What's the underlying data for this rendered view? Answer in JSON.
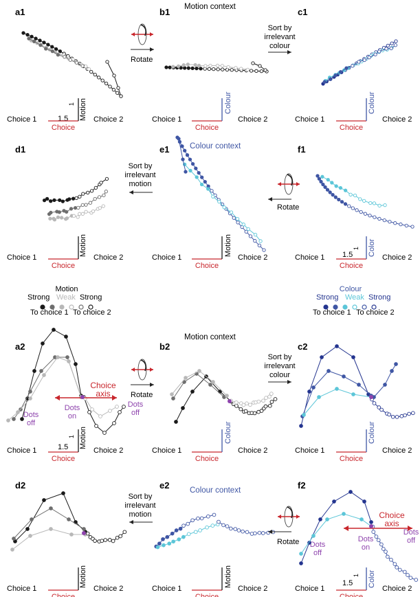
{
  "panels": {
    "a1": "a1",
    "b1": "b1",
    "c1": "c1",
    "d1": "d1",
    "e1": "e1",
    "f1": "f1",
    "a2": "a2",
    "b2": "b2",
    "c2": "c2",
    "d2": "d2",
    "e2": "e2",
    "f2": "f2"
  },
  "contexts": {
    "motion": "Motion context",
    "colour": "Colour context"
  },
  "axes": {
    "choice1": "Choice 1",
    "choice2": "Choice 2",
    "choice": "Choice",
    "motion": "Motion",
    "colour": "Colour",
    "color": "Color",
    "scale_value": "1.5",
    "scale_unit": "1"
  },
  "operations": {
    "rotate": "Rotate",
    "sort_colour": [
      "Sort by",
      "irrelevant",
      "colour"
    ],
    "sort_motion": [
      "Sort by",
      "irrelevant",
      "motion"
    ]
  },
  "annotations": {
    "choice_axis": [
      "Choice",
      "axis"
    ],
    "dots_on": [
      "Dots",
      "on"
    ],
    "dots_off": [
      "Dots",
      "off"
    ]
  },
  "legend_motion": {
    "title": "Motion",
    "strong": "Strong",
    "weak": "Weak",
    "to_choice1": "To choice 1",
    "to_choice2": "To choice 2"
  },
  "legend_colour": {
    "title": "Colour",
    "strong": "Strong",
    "weak": "Weak",
    "to_choice1": "To choice 1",
    "to_choice2": "To choice 2"
  },
  "colors": {
    "black": "#1a1a1a",
    "dark_grey": "#6e6e6e",
    "light_grey": "#b8b8b8",
    "choice_red": "#c8262c",
    "colour_blue": "#3f56a4",
    "dark_blue": "#24358f",
    "cyan": "#5cc6d8",
    "purple": "#8e44ad"
  }
}
